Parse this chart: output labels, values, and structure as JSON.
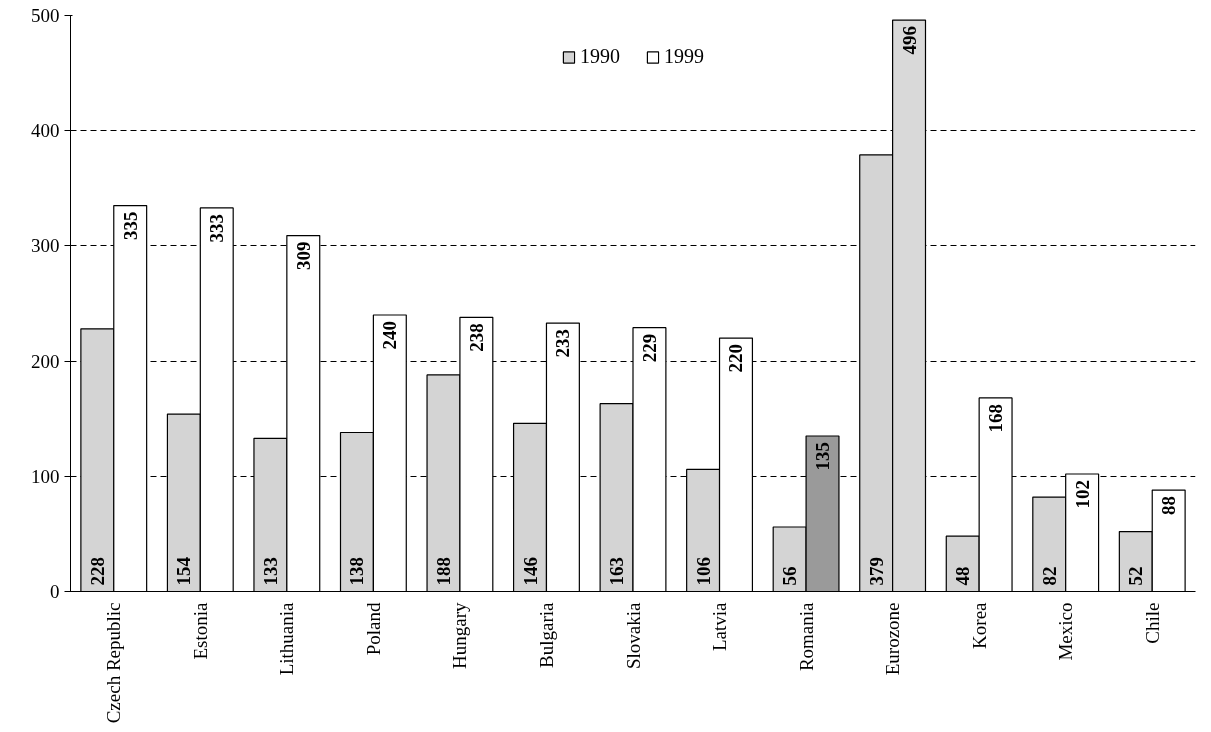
{
  "chart_data": {
    "type": "bar",
    "categories": [
      "Czech Republic",
      "Estonia",
      "Lithuania",
      "Poland",
      "Hungary",
      "Bulgaria",
      "Slovakia",
      "Latvia",
      "Romania",
      "Eurozone",
      "Korea",
      "Mexico",
      "Chile"
    ],
    "series": [
      {
        "name": "1990",
        "color": "#d4d4d4",
        "values": [
          228,
          154,
          133,
          138,
          188,
          146,
          163,
          106,
          56,
          379,
          48,
          82,
          52
        ]
      },
      {
        "name": "1999",
        "color": "#ffffff",
        "colors": [
          null,
          null,
          null,
          null,
          null,
          null,
          null,
          null,
          "#9a9a9a",
          "#d9d9d9",
          null,
          null,
          null
        ],
        "values": [
          335,
          333,
          309,
          240,
          238,
          233,
          229,
          220,
          135,
          496,
          168,
          102,
          88
        ]
      }
    ],
    "ylim": [
      0,
      500
    ],
    "yticks": [
      0,
      100,
      200,
      300,
      400,
      500
    ],
    "grid": "y",
    "legend": "top",
    "data_labels": true
  }
}
